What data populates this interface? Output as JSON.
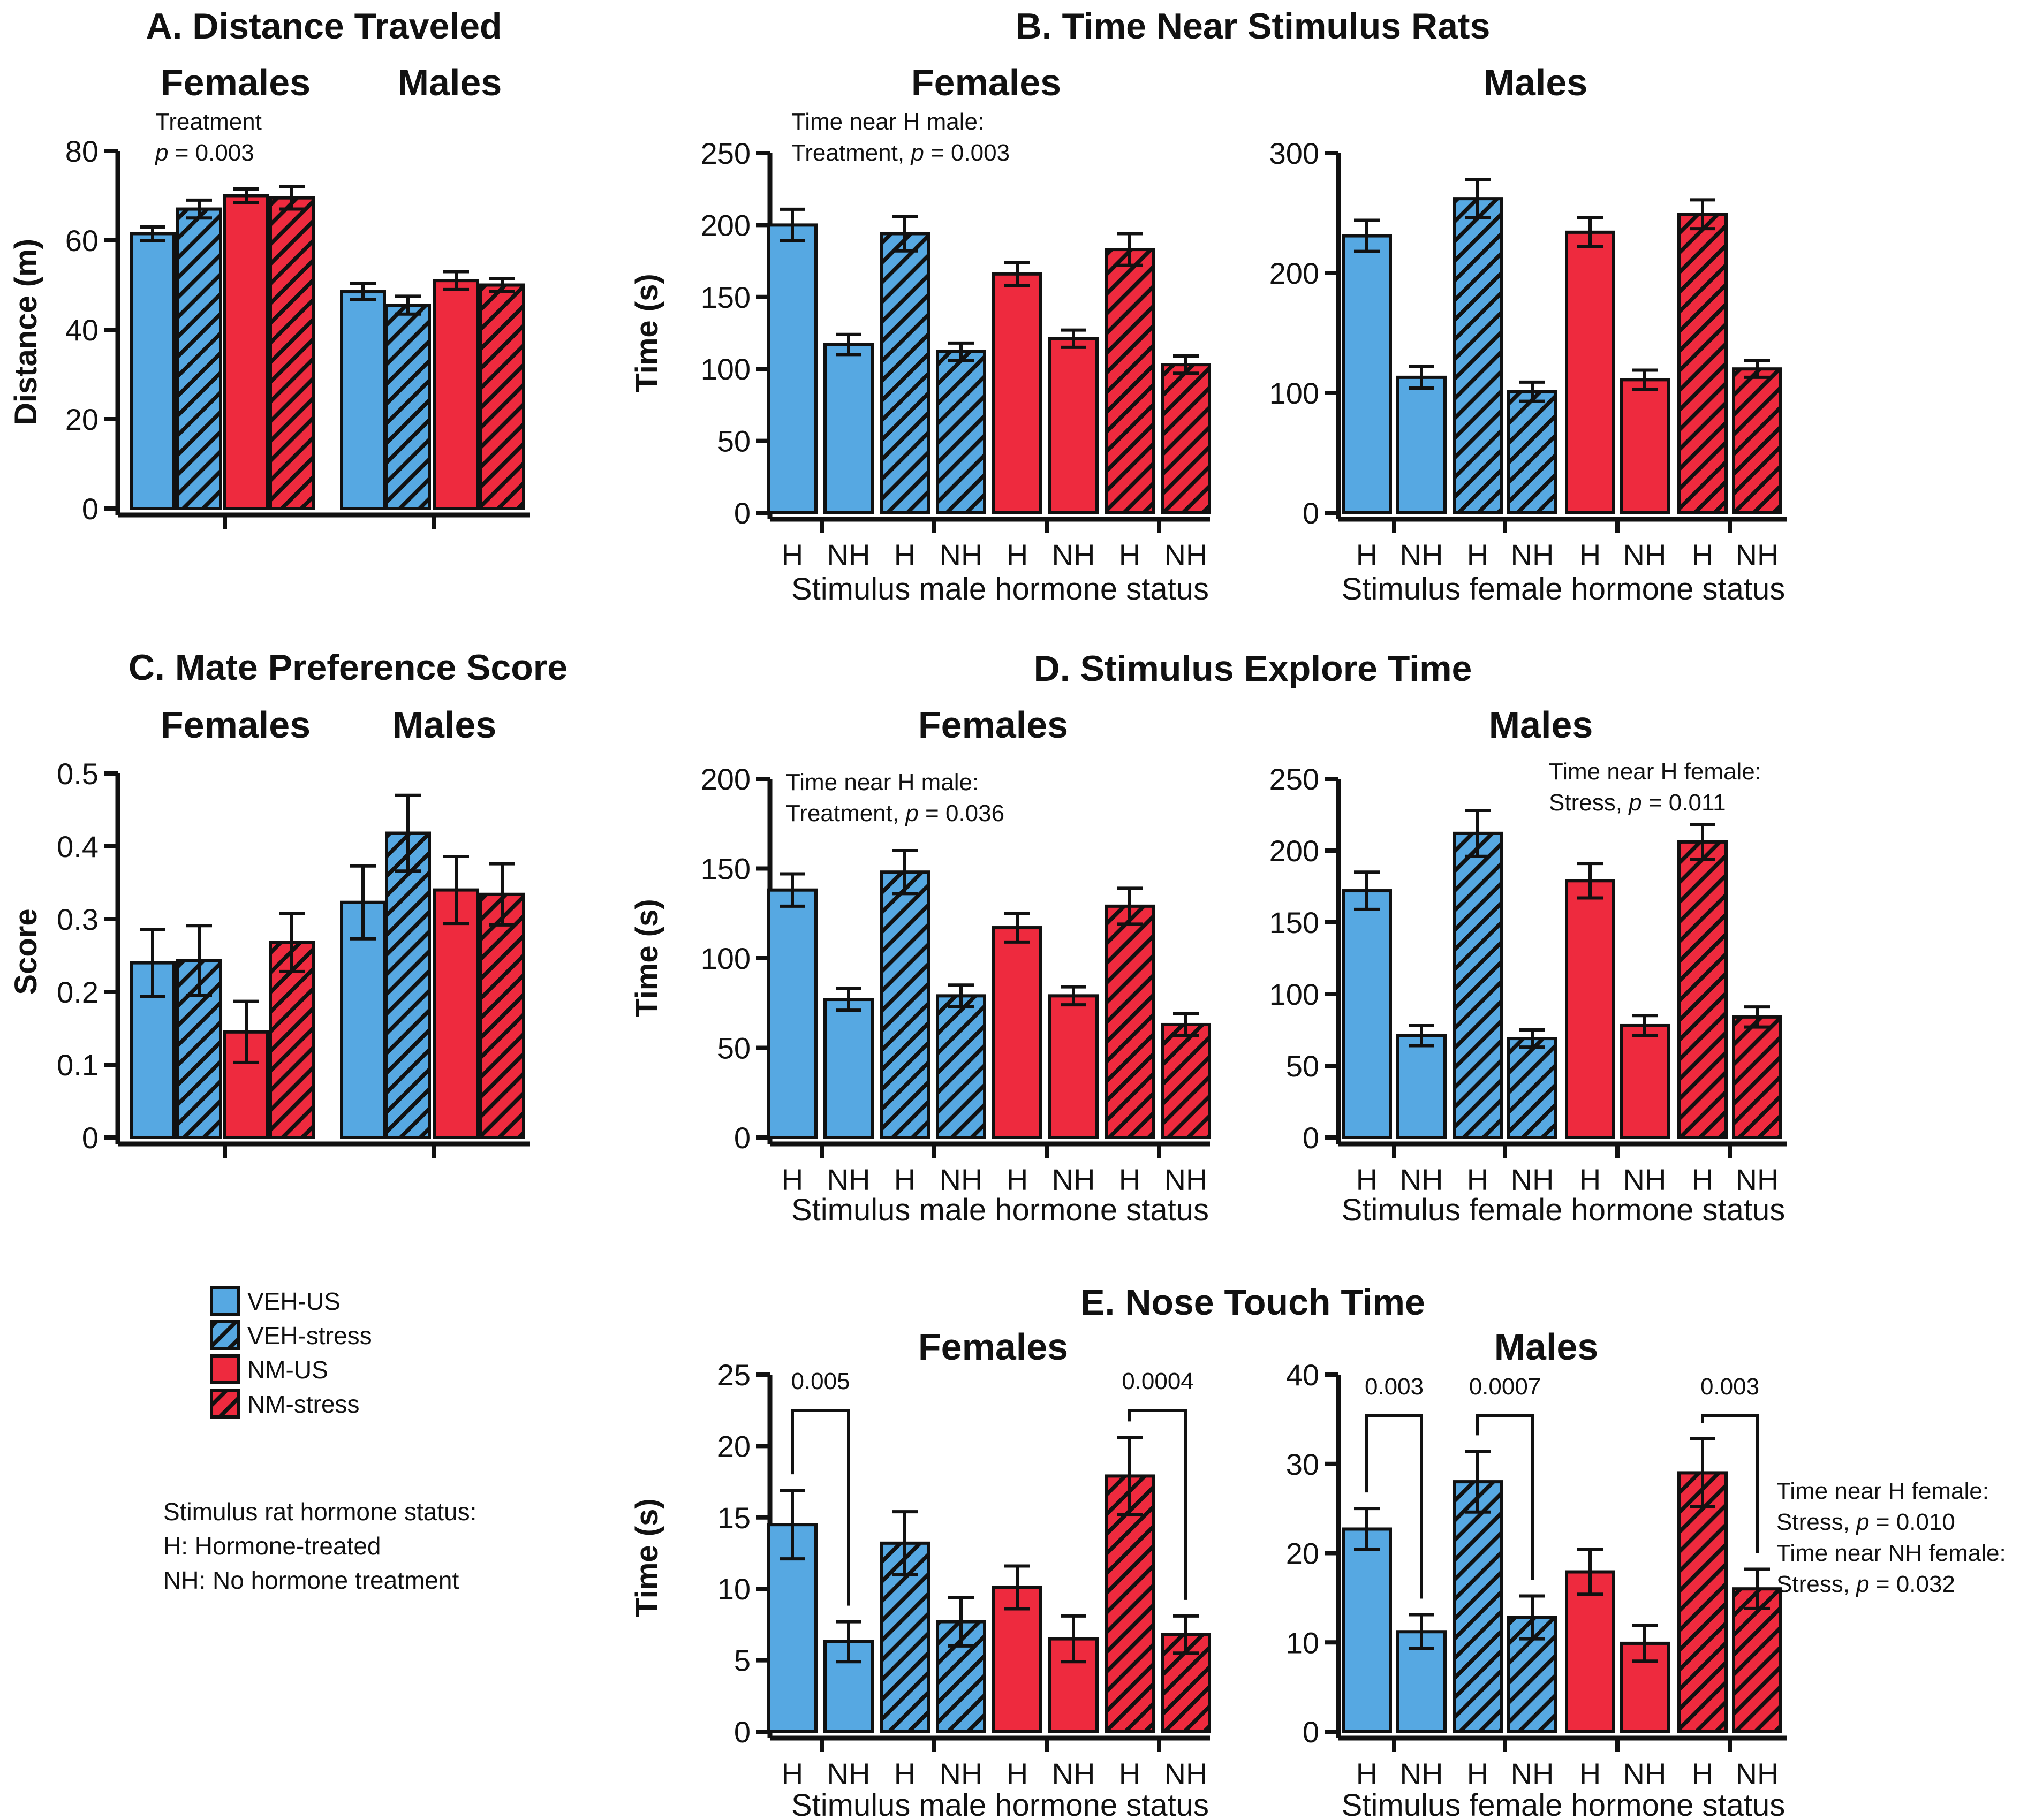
{
  "colors": {
    "blue": "#56a8e2",
    "red": "#ee2a3e",
    "black": "#111111"
  },
  "legend": {
    "items": [
      {
        "label": "VEH-US",
        "color": "blue",
        "hatch": false
      },
      {
        "label": "VEH-stress",
        "color": "blue",
        "hatch": true
      },
      {
        "label": "NM-US",
        "color": "red",
        "hatch": false
      },
      {
        "label": "NM-stress",
        "color": "red",
        "hatch": true
      }
    ],
    "note_lines": [
      "Stimulus rat hormone status:",
      "H: Hormone-treated",
      "NH: No hormone treatment"
    ]
  },
  "chart_data": [
    {
      "panel": "A",
      "title": "A. Distance Traveled",
      "type": "bar",
      "group_titles": [
        "Females",
        "Males"
      ],
      "ylabel": "Distance (m)",
      "ylim": [
        0,
        80
      ],
      "yticks": [
        0,
        20,
        40,
        60,
        80
      ],
      "conditions": [
        "VEH-US",
        "VEH-stress",
        "NM-US",
        "NM-stress"
      ],
      "series": [
        {
          "group": "Females",
          "values": [
            61.5,
            67,
            70,
            69.5
          ],
          "errors": [
            1.5,
            2,
            1.5,
            2.5
          ]
        },
        {
          "group": "Males",
          "values": [
            48.5,
            45.5,
            51,
            50
          ],
          "errors": [
            1.8,
            2,
            2,
            1.5
          ]
        }
      ],
      "annotations": [
        {
          "lines": [
            "Treatment",
            "p = 0.003"
          ]
        }
      ]
    },
    {
      "panel": "C",
      "title": "C. Mate Preference Score",
      "type": "bar",
      "group_titles": [
        "Females",
        "Males"
      ],
      "ylabel": "Score",
      "ylim": [
        0,
        0.5
      ],
      "yticks": [
        0,
        0.1,
        0.2,
        0.3,
        0.4,
        0.5
      ],
      "conditions": [
        "VEH-US",
        "VEH-stress",
        "NM-US",
        "NM-stress"
      ],
      "series": [
        {
          "group": "Females",
          "values": [
            0.24,
            0.243,
            0.145,
            0.268
          ],
          "errors": [
            0.046,
            0.048,
            0.042,
            0.04
          ]
        },
        {
          "group": "Males",
          "values": [
            0.323,
            0.418,
            0.34,
            0.334
          ],
          "errors": [
            0.05,
            0.052,
            0.046,
            0.042
          ]
        }
      ]
    },
    {
      "panel": "B",
      "title": "B. Time Near Stimulus Rats",
      "subtitle": "Females",
      "type": "bar",
      "ylabel": "Time (s)",
      "xlabel": "Stimulus male hormone status",
      "categories": [
        "H",
        "NH",
        "H",
        "NH",
        "H",
        "NH",
        "H",
        "NH"
      ],
      "ylim": [
        0,
        250
      ],
      "yticks": [
        0,
        50,
        100,
        150,
        200,
        250
      ],
      "values": [
        200,
        117,
        194,
        112,
        166,
        121,
        183,
        103
      ],
      "errors": [
        11,
        7,
        12,
        6,
        8,
        6,
        11,
        6
      ],
      "annotations": [
        {
          "lines": [
            "Time near H male:",
            "Treatment, p = 0.003"
          ]
        }
      ]
    },
    {
      "panel": "B",
      "subtitle": "Males",
      "type": "bar",
      "xlabel": "Stimulus female hormone status",
      "categories": [
        "H",
        "NH",
        "H",
        "NH",
        "H",
        "NH",
        "H",
        "NH"
      ],
      "ylim": [
        0,
        300
      ],
      "yticks": [
        0,
        100,
        200,
        300
      ],
      "values": [
        231,
        113,
        262,
        101,
        234,
        111,
        249,
        120
      ],
      "errors": [
        13,
        9,
        16,
        8,
        12,
        8,
        12,
        7
      ]
    },
    {
      "panel": "D",
      "title": "D. Stimulus Explore Time",
      "subtitle": "Females",
      "type": "bar",
      "ylabel": "Time (s)",
      "xlabel": "Stimulus male hormone status",
      "categories": [
        "H",
        "NH",
        "H",
        "NH",
        "H",
        "NH",
        "H",
        "NH"
      ],
      "ylim": [
        0,
        200
      ],
      "yticks": [
        0,
        50,
        100,
        150,
        200
      ],
      "values": [
        138,
        77,
        148,
        79,
        117,
        79,
        129,
        63
      ],
      "errors": [
        9,
        6,
        12,
        6,
        8,
        5,
        10,
        6
      ],
      "annotations": [
        {
          "lines": [
            "Time near H male:",
            "Treatment, p = 0.036"
          ]
        }
      ]
    },
    {
      "panel": "D",
      "subtitle": "Males",
      "type": "bar",
      "xlabel": "Stimulus female hormone status",
      "categories": [
        "H",
        "NH",
        "H",
        "NH",
        "H",
        "NH",
        "H",
        "NH"
      ],
      "ylim": [
        0,
        250
      ],
      "yticks": [
        0,
        50,
        100,
        150,
        200,
        250
      ],
      "values": [
        172,
        71,
        212,
        69,
        179,
        78,
        206,
        84
      ],
      "errors": [
        13,
        7,
        16,
        6,
        12,
        7,
        12,
        7
      ],
      "annotations": [
        {
          "lines": [
            "Time near H female:",
            "Stress, p = 0.011"
          ]
        }
      ]
    },
    {
      "panel": "E",
      "title": "E. Nose Touch Time",
      "subtitle": "Females",
      "type": "bar",
      "ylabel": "Time (s)",
      "xlabel": "Stimulus male hormone status",
      "categories": [
        "H",
        "NH",
        "H",
        "NH",
        "H",
        "NH",
        "H",
        "NH"
      ],
      "ylim": [
        0,
        25
      ],
      "yticks": [
        0,
        5,
        10,
        15,
        20,
        25
      ],
      "values": [
        14.5,
        6.3,
        13.2,
        7.7,
        10.1,
        6.5,
        17.9,
        6.8
      ],
      "errors": [
        2.4,
        1.4,
        2.2,
        1.7,
        1.5,
        1.6,
        2.7,
        1.3
      ],
      "comparisons": [
        {
          "bars": [
            0,
            1
          ],
          "label": "0.005"
        },
        {
          "bars": [
            6,
            7
          ],
          "label": "0.0004"
        }
      ]
    },
    {
      "panel": "E",
      "subtitle": "Males",
      "type": "bar",
      "xlabel": "Stimulus female hormone status",
      "categories": [
        "H",
        "NH",
        "H",
        "NH",
        "H",
        "NH",
        "H",
        "NH"
      ],
      "ylim": [
        0,
        40
      ],
      "yticks": [
        0,
        10,
        20,
        30,
        40
      ],
      "values": [
        22.7,
        11.2,
        28,
        12.8,
        17.9,
        9.9,
        29,
        16
      ],
      "errors": [
        2.3,
        1.9,
        3.4,
        2.4,
        2.5,
        2,
        3.8,
        2.2
      ],
      "comparisons": [
        {
          "bars": [
            0,
            1
          ],
          "label": "0.003"
        },
        {
          "bars": [
            2,
            3
          ],
          "label": "0.0007"
        },
        {
          "bars": [
            6,
            7
          ],
          "label": "0.003"
        }
      ],
      "annotations": [
        {
          "lines": [
            "Time near H female:",
            "Stress, p = 0.010",
            "Time near NH female:",
            "Stress, p = 0.032"
          ]
        }
      ]
    }
  ]
}
